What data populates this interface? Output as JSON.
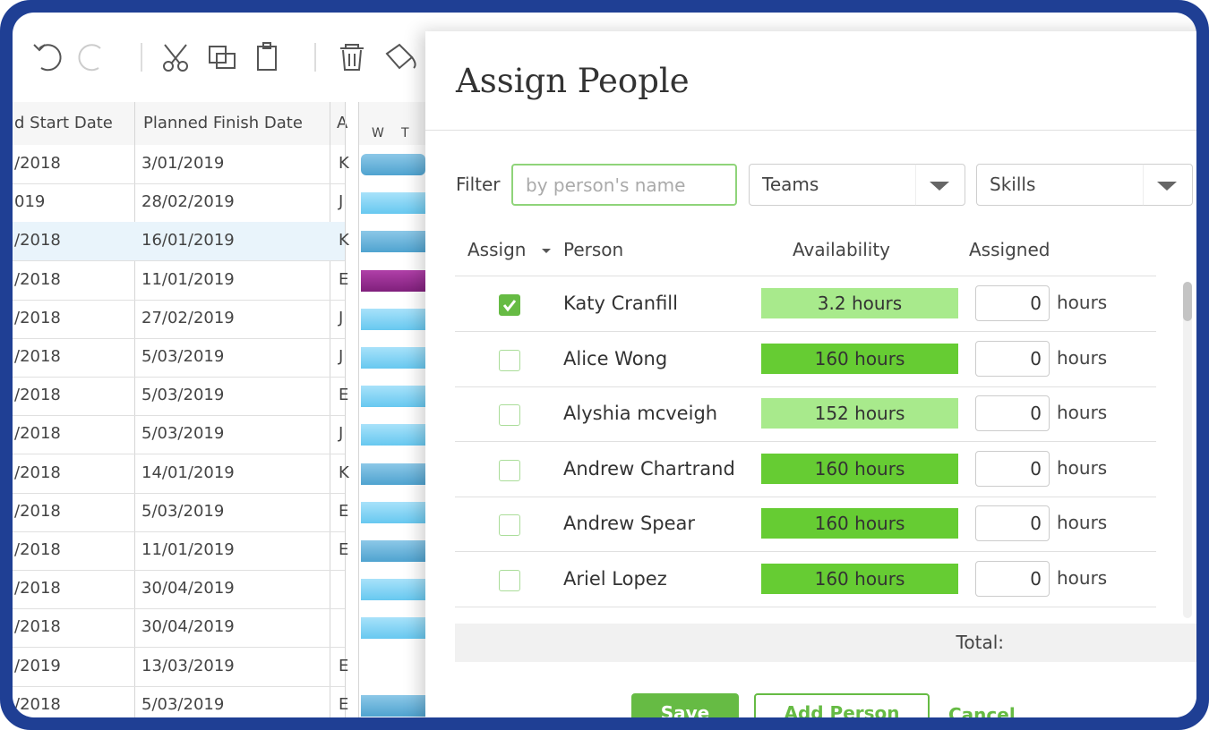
{
  "table": {
    "headers": [
      "d Start Date",
      "Planned Finish Date",
      "A"
    ],
    "rows": [
      [
        "/2018",
        "3/01/2019",
        "K"
      ],
      [
        "019",
        "28/02/2019",
        "J"
      ],
      [
        "/2018",
        "16/01/2019",
        "K"
      ],
      [
        "/2018",
        "11/01/2019",
        "E"
      ],
      [
        "/2018",
        "27/02/2019",
        "J"
      ],
      [
        "/2018",
        "5/03/2019",
        "J"
      ],
      [
        "/2018",
        "5/03/2019",
        "E"
      ],
      [
        "/2018",
        "5/03/2019",
        "J"
      ],
      [
        "/2018",
        "14/01/2019",
        "K"
      ],
      [
        "/2018",
        "5/03/2019",
        "E"
      ],
      [
        "/2018",
        "11/01/2019",
        "E"
      ],
      [
        "/2018",
        "30/04/2019"
      ],
      [
        "/2018",
        "30/04/2019"
      ],
      [
        "/2019",
        "13/03/2019",
        "E"
      ],
      [
        "/2018",
        "5/03/2019",
        "E"
      ]
    ]
  },
  "gantt": {
    "days": [
      "W",
      "T"
    ]
  },
  "dialog": {
    "title": "Assign People",
    "filter": {
      "label": "Filter",
      "placeholder": "by person's name",
      "teams": "Teams",
      "skills": "Skills"
    },
    "columns": [
      "Assign",
      "Person",
      "Availability",
      "Assigned"
    ],
    "people": [
      {
        "name": "Katy Cranfill",
        "availability": "3.2 hours",
        "color": "#a8ea8c",
        "assigned": "0",
        "unit": "hours",
        "checked": true
      },
      {
        "name": "Alice Wong",
        "availability": "160 hours",
        "color": "#66cc33",
        "assigned": "0",
        "unit": "hours",
        "checked": false
      },
      {
        "name": "Alyshia mcveigh",
        "availability": "152 hours",
        "color": "#a8ea8c",
        "assigned": "0",
        "unit": "hours",
        "checked": false
      },
      {
        "name": "Andrew Chartrand",
        "availability": "160 hours",
        "color": "#66cc33",
        "assigned": "0",
        "unit": "hours",
        "checked": false
      },
      {
        "name": "Andrew Spear",
        "availability": "160 hours",
        "color": "#66cc33",
        "assigned": "0",
        "unit": "hours",
        "checked": false
      },
      {
        "name": "Ariel Lopez",
        "availability": "160 hours",
        "color": "#66cc33",
        "assigned": "0",
        "unit": "hours",
        "checked": false
      }
    ],
    "total": "Total:",
    "buttons": {
      "save": "Save",
      "add": "Add Person",
      "cancel": "Cancel"
    }
  }
}
